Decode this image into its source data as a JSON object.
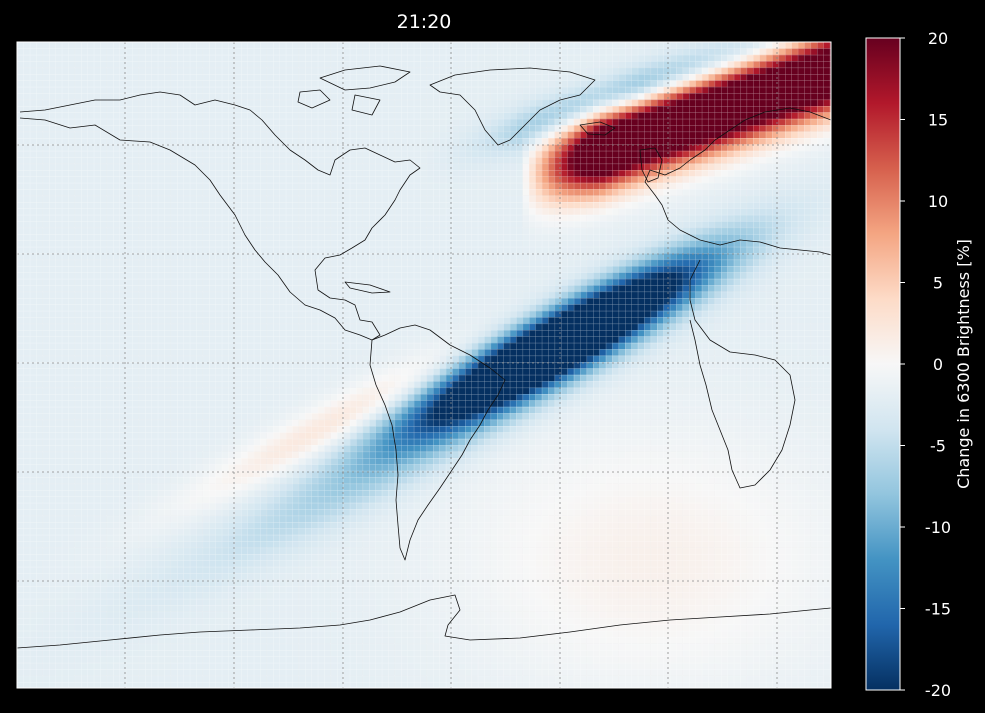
{
  "chart_data": {
    "type": "heatmap",
    "title": "21:20",
    "xlabel": "",
    "ylabel": "",
    "grid": true,
    "colorbar": {
      "label": "Change in 6300 Brightness [%]",
      "range": [
        -20,
        20
      ],
      "ticks": [
        20,
        15,
        10,
        5,
        0,
        -5,
        -10,
        -15,
        -20
      ],
      "colormap": "RdBu_r",
      "stops": [
        "#053061",
        "#2166ac",
        "#4393c3",
        "#92c5de",
        "#d1e5f0",
        "#f7f7f7",
        "#fddbc7",
        "#f4a582",
        "#d6604d",
        "#b2182b",
        "#67001f"
      ]
    },
    "features": [
      {
        "name": "positive band",
        "peak_value": 20,
        "extent": "mid-Atlantic to Europe/North Africa"
      },
      {
        "name": "negative band",
        "peak_value": -20,
        "extent": "Atlantic off north-east South America"
      },
      {
        "name": "background",
        "value": -2
      }
    ]
  }
}
